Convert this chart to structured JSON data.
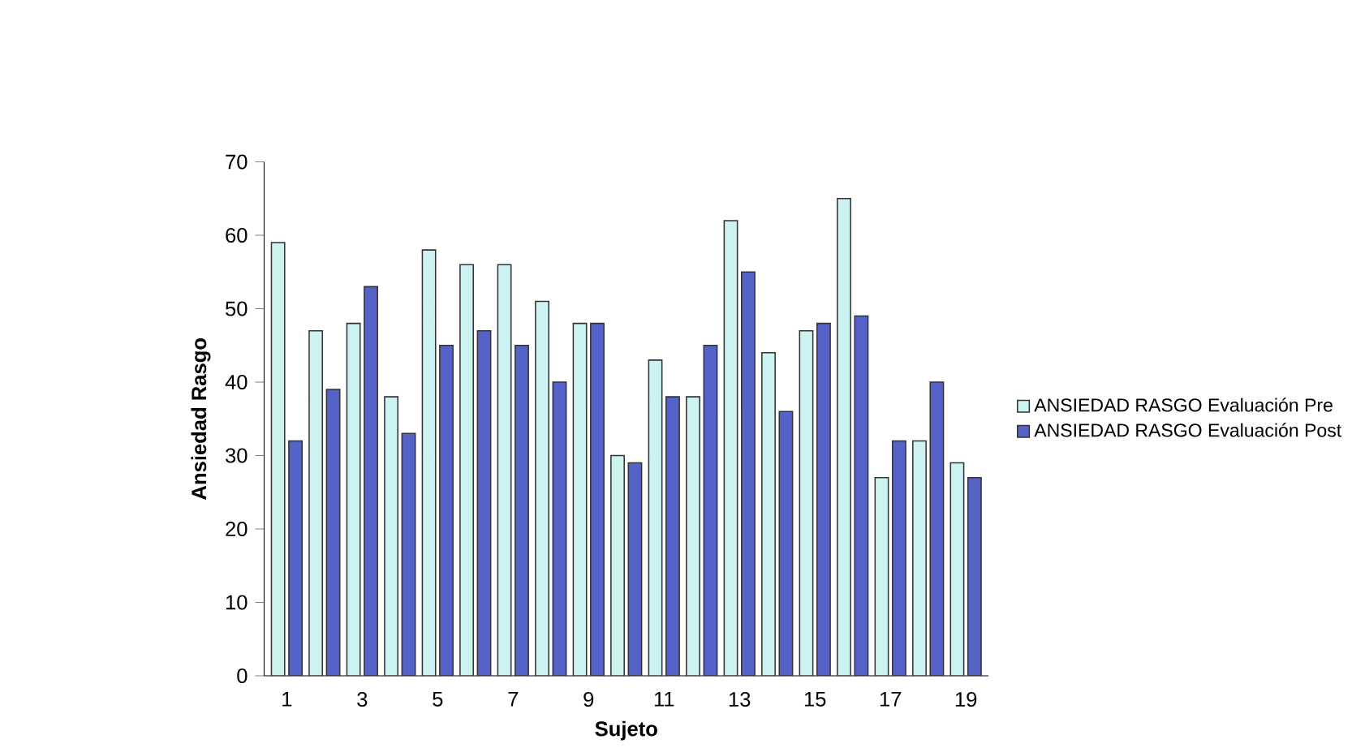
{
  "chart_data": {
    "type": "bar",
    "xlabel": "Sujeto",
    "ylabel": "Ansiedad Rasgo",
    "categories": [
      "1",
      null,
      "3",
      null,
      "5",
      null,
      "7",
      null,
      "9",
      null,
      "11",
      null,
      "13",
      null,
      "15",
      null,
      "17",
      null,
      "19"
    ],
    "series": [
      {
        "name": "ANSIEDAD RASGO Evaluación Pre",
        "color": "#ccf2f2",
        "values": [
          59,
          47,
          48,
          38,
          58,
          56,
          56,
          51,
          48,
          30,
          43,
          38,
          62,
          44,
          47,
          65,
          27,
          32,
          29
        ]
      },
      {
        "name": "ANSIEDAD RASGO Evaluación Post",
        "color": "#5563c8",
        "values": [
          32,
          39,
          53,
          33,
          45,
          47,
          45,
          40,
          48,
          29,
          38,
          45,
          55,
          36,
          48,
          49,
          32,
          40,
          27
        ]
      }
    ],
    "ylim": [
      0,
      70
    ],
    "yticks": [
      0,
      10,
      20,
      30,
      40,
      50,
      60,
      70
    ],
    "grid": false,
    "legend": "right"
  }
}
